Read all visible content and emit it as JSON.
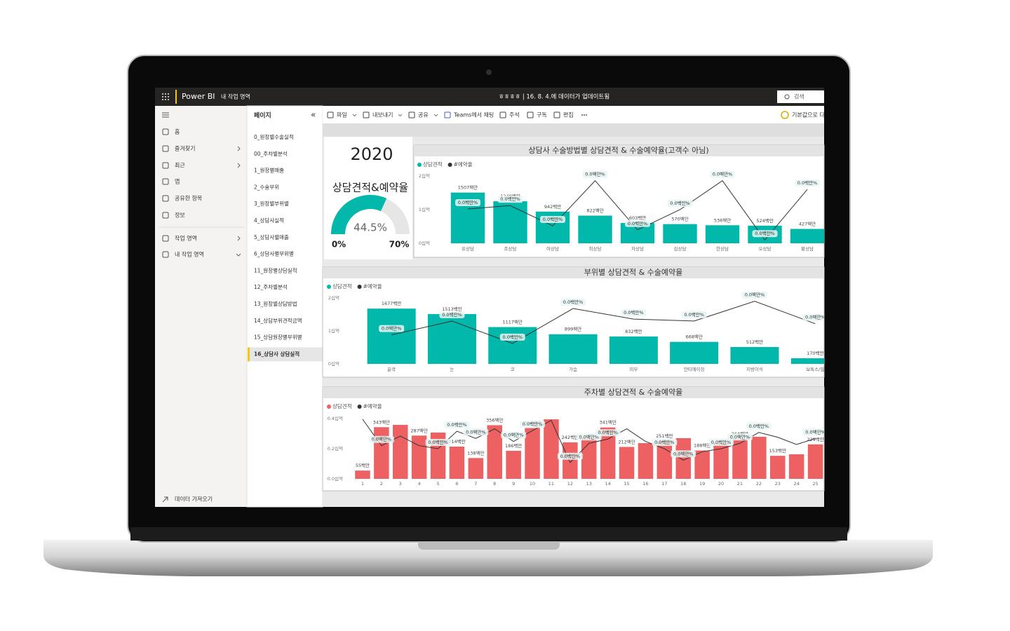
{
  "topbar": {
    "app": "Power BI",
    "workspace": "내 작업 영역",
    "report_status": "ㅎㅎㅎㅎ | 16. 8. 4.에 데이터가 업데이트됨",
    "search": "검색"
  },
  "nav": {
    "items": [
      "홈",
      "즐겨찾기",
      "최근",
      "앱",
      "공유한 항목",
      "정보",
      "작업 영역",
      "내 작업 영역"
    ],
    "footer": "데이터 가져오기"
  },
  "pages": {
    "title": "페이지",
    "selected": 13,
    "items": [
      "0_원장별수술실적",
      "00_주차별분석",
      "1_원장별매출",
      "2_수술부위",
      "3_원장별부위별",
      "4_상담사실적",
      "5_상담사별매출",
      "6_상담사별부위별",
      "11_원장별상담실적",
      "12_주차별분석",
      "13_원장별상담방법",
      "14_상담부위견적금액",
      "15_상담원장별부위별",
      "16_상담사 상담실적"
    ]
  },
  "toolbar": {
    "items": [
      "파일",
      "내보내기",
      "공유",
      "Teams에서 채팅",
      "주석",
      "구독",
      "편집"
    ],
    "reset": "기본값으로 다"
  },
  "kpi": {
    "year": "2020",
    "gauge": {
      "title": "상담견적&예약율",
      "value": 44.5,
      "value_label": "44.5%",
      "range": [
        {
          "value": 0,
          "label": "0%"
        },
        {
          "value": 70,
          "label": "70%"
        }
      ],
      "color": "#01b8aa"
    }
  },
  "chart_data": [
    {
      "type": "combo",
      "title": "상담사 수술방법별 상담견적 & 수술예약율(고객수 아님)",
      "categories": [
        "유상담",
        "조상담",
        "여상담",
        "최상담",
        "차상담",
        "김상담",
        "한상담",
        "오상담",
        "황상담"
      ],
      "series": [
        {
          "name": "상담견적",
          "type": "bar",
          "color": "#01b8aa",
          "values": [
            1507000000,
            1249000000,
            942000000,
            822000000,
            603000000,
            570000000,
            536000000,
            524000000,
            427000000
          ],
          "value_labels": [
            "1507백만",
            "1249백만",
            "942백만",
            "822백만",
            "603백만",
            "570백만",
            "536백만",
            "524백만",
            "427백만"
          ]
        },
        {
          "name": "#예약율",
          "type": "line",
          "color": "#333333",
          "axis": "y2",
          "values": [
            51,
            56,
            26,
            93,
            20,
            50,
            93,
            5,
            80
          ],
          "value_labels": [
            "0.0백만%",
            "0.0백만%",
            "0.0백만%",
            "0.0백만%",
            "0.0백만%",
            "0.0백만%",
            "0.0백만%",
            "0.0백만%",
            "0.0백만%"
          ]
        }
      ],
      "ylim": [
        0,
        2000000000
      ],
      "yticks": [
        {
          "value": 0,
          "label": "0십억"
        },
        {
          "value": 1000000000,
          "label": "1십억"
        },
        {
          "value": 2000000000,
          "label": "2십억"
        }
      ],
      "y2lim": [
        0,
        100
      ]
    },
    {
      "type": "combo",
      "title": "부위별 상담견적 & 수술예약율",
      "categories": [
        "윤곽",
        "눈",
        "코",
        "가슴",
        "피부",
        "안티에이징",
        "지방이식",
        "보톡스/필"
      ],
      "series": [
        {
          "name": "상담견적",
          "type": "bar",
          "color": "#01b8aa",
          "values": [
            1677000000,
            1513000000,
            1117000000,
            899000000,
            832000000,
            668000000,
            512000000,
            170000000
          ],
          "value_labels": [
            "1677백만",
            "1513백만",
            "1117백만",
            "899백만",
            "832백만",
            "668백만",
            "512백만",
            "170백만"
          ]
        },
        {
          "name": "#예약율",
          "type": "line",
          "color": "#333333",
          "axis": "y2",
          "values": [
            44,
            65,
            31,
            84,
            68,
            65,
            95,
            61
          ],
          "value_labels": [
            "0.0백만%",
            "0.0백만%",
            "0.0백만%",
            "0.0백만%",
            "0.0백만%",
            "0.0백만%",
            "0.0백만%",
            "0.0백만%"
          ]
        }
      ],
      "ylim": [
        0,
        2000000000
      ],
      "yticks": [
        {
          "value": 0,
          "label": "0십억"
        },
        {
          "value": 1000000000,
          "label": "1십억"
        },
        {
          "value": 2000000000,
          "label": "2십억"
        }
      ],
      "y2lim": [
        0,
        100
      ]
    },
    {
      "type": "combo",
      "title": "주차별 상담견적 & 수술예약율",
      "categories": [
        1,
        2,
        3,
        4,
        5,
        6,
        7,
        8,
        9,
        10,
        11,
        12,
        13,
        14,
        15,
        16,
        17,
        18,
        19,
        20,
        21,
        22,
        23,
        24,
        25
      ],
      "series": [
        {
          "name": "상담견적",
          "type": "bar",
          "color": "#ee6163",
          "values": [
            55000000,
            343000000,
            358000000,
            287000000,
            307000000,
            214000000,
            138000000,
            356000000,
            186000000,
            337000000,
            395000000,
            242000000,
            270000000,
            341000000,
            212000000,
            237000000,
            251000000,
            270000000,
            188000000,
            237000000,
            264000000,
            279000000,
            153000000,
            163000000,
            229000000
          ],
          "value_labels": [
            "55백만",
            "343백만",
            null,
            "287백만",
            null,
            "214백만",
            "138백만",
            "356백만",
            "186백만",
            "337백만",
            null,
            "242백만",
            null,
            "341백만",
            "212백만",
            null,
            "251백만",
            null,
            "188백만",
            null,
            "264백만",
            null,
            "153백만",
            null,
            "229백만"
          ]
        },
        {
          "name": "#예약율",
          "type": "line",
          "color": "#333333",
          "axis": "y2",
          "values": [
            99,
            55,
            71,
            55,
            50,
            79,
            67,
            83,
            62,
            80,
            97,
            27,
            59,
            66,
            83,
            62,
            50,
            31,
            45,
            50,
            59,
            77,
            69,
            57,
            67
          ],
          "value_labels": [
            null,
            "0.0백만%",
            null,
            null,
            "0.0백만%",
            "0.0백만%",
            "0.0백만%",
            null,
            "0.0백만%",
            "0.0백만%",
            null,
            "0.0백만%",
            "0.0백만%",
            "0.0백만%",
            null,
            null,
            "0.0백만%",
            "0.0백만%",
            null,
            "0.0백만%",
            "0.0백만%",
            "0.0백만%",
            null,
            null,
            "0.0백만%"
          ]
        }
      ],
      "ylim": [
        0,
        400000000
      ],
      "yticks": [
        {
          "value": 0,
          "label": "0.0십억"
        },
        {
          "value": 200000000,
          "label": "0.2십억"
        },
        {
          "value": 400000000,
          "label": "0.4십억"
        }
      ],
      "y2lim": [
        0,
        100
      ]
    }
  ]
}
